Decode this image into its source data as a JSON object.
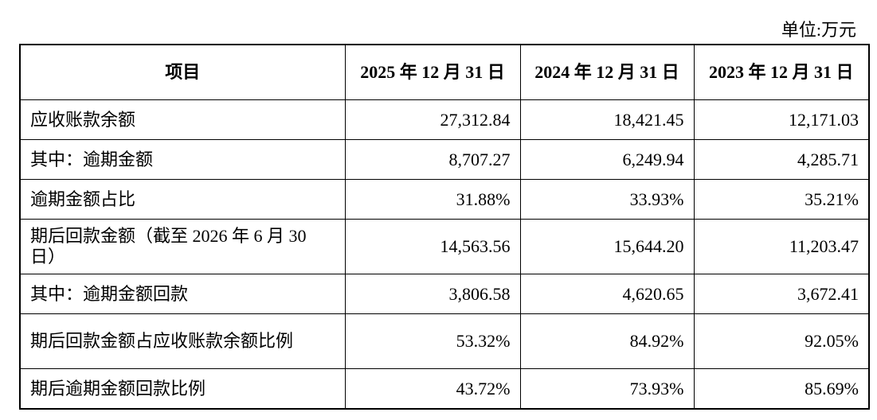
{
  "unit": "单位:万元",
  "table": {
    "header": [
      "项目",
      "2025 年 12 月 31 日",
      "2024 年 12 月 31 日",
      "2023 年 12 月 31 日"
    ],
    "rows": [
      [
        "应收账款余额",
        "27,312.84",
        "18,421.45",
        "12,171.03"
      ],
      [
        "其中：逾期金额",
        "8,707.27",
        "6,249.94",
        "4,285.71"
      ],
      [
        "逾期金额占比",
        "31.88%",
        "33.93%",
        "35.21%"
      ],
      [
        "期后回款金额（截至 2026 年 6 月 30 日）",
        "14,563.56",
        "15,644.20",
        "11,203.47"
      ],
      [
        "其中：逾期金额回款",
        "3,806.58",
        "4,620.65",
        "3,672.41"
      ],
      [
        "期后回款金额占应收账款余额比例",
        "53.32%",
        "84.92%",
        "92.05%"
      ],
      [
        "期后逾期金额回款比例",
        "43.72%",
        "73.93%",
        "85.69%"
      ]
    ]
  }
}
